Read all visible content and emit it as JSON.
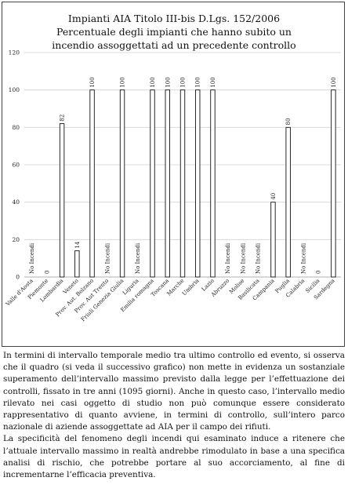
{
  "chart_data": {
    "type": "bar",
    "title": [
      "Impianti AIA Titolo III-bis D.Lgs. 152/2006",
      "Percentuale degli impianti che hanno subito un",
      "incendio assoggettati ad un precedente controllo"
    ],
    "ylim": [
      0,
      120
    ],
    "yticks": [
      0,
      20,
      40,
      60,
      80,
      100,
      120
    ],
    "grid": true,
    "legend": "none",
    "categories": [
      "Valle d'Aosta",
      "Piemonte",
      "Lombardia",
      "Veneto",
      "Prov. Aut. Bolzano",
      "Prov. Aut Trento",
      "Friuli Genezia Giulia",
      "Liguria",
      "Emilia romagna",
      "Toscana",
      "Marche",
      "Umbria",
      "Lazio",
      "Abruzzo",
      "Molise",
      "Basilicata",
      "Campania",
      "Puglia",
      "Calabria",
      "Sicilia",
      "Sardegna"
    ],
    "values": [
      null,
      0,
      82,
      14,
      100,
      null,
      100,
      null,
      100,
      100,
      100,
      100,
      100,
      null,
      null,
      null,
      40,
      80,
      null,
      0,
      100
    ],
    "data_labels": [
      "No Incendi",
      "0",
      "82",
      "14",
      "100",
      "No Incendi",
      "100",
      "No Incendi",
      "100",
      "100",
      "100",
      "100",
      "100",
      "No Incendi",
      "No Incendi",
      "No Incendi",
      "40",
      "80",
      "No Incendi",
      "0",
      "100"
    ]
  },
  "text": {
    "paragraph_1": "In termini di intervallo temporale medio tra ultimo controllo ed evento, si osserva che il quadro (si veda il successivo grafico) non mette in evidenza un sostanziale superamento dell’intervallo massimo previsto dalla legge per l’effettuazione dei controlli, fissato in tre anni (1095 giorni). Anche in questo caso, l’intervallo medio rilevato nei casi oggetto di studio non può comunque essere considerato rappresentativo di quanto avviene, in termini di controllo, sull’intero parco nazionale di aziende assoggettate ad AIA per il campo dei rifiuti.",
    "paragraph_2": "La specificità del fenomeno degli incendi qui esaminato induce a ritenere che l’attuale intervallo massimo in realtà andrebbe rimodulato in base a una specifica analisi di rischio, che potrebbe portare al suo accorciamento, al fine di incrementarne l’efficacia preventiva."
  }
}
